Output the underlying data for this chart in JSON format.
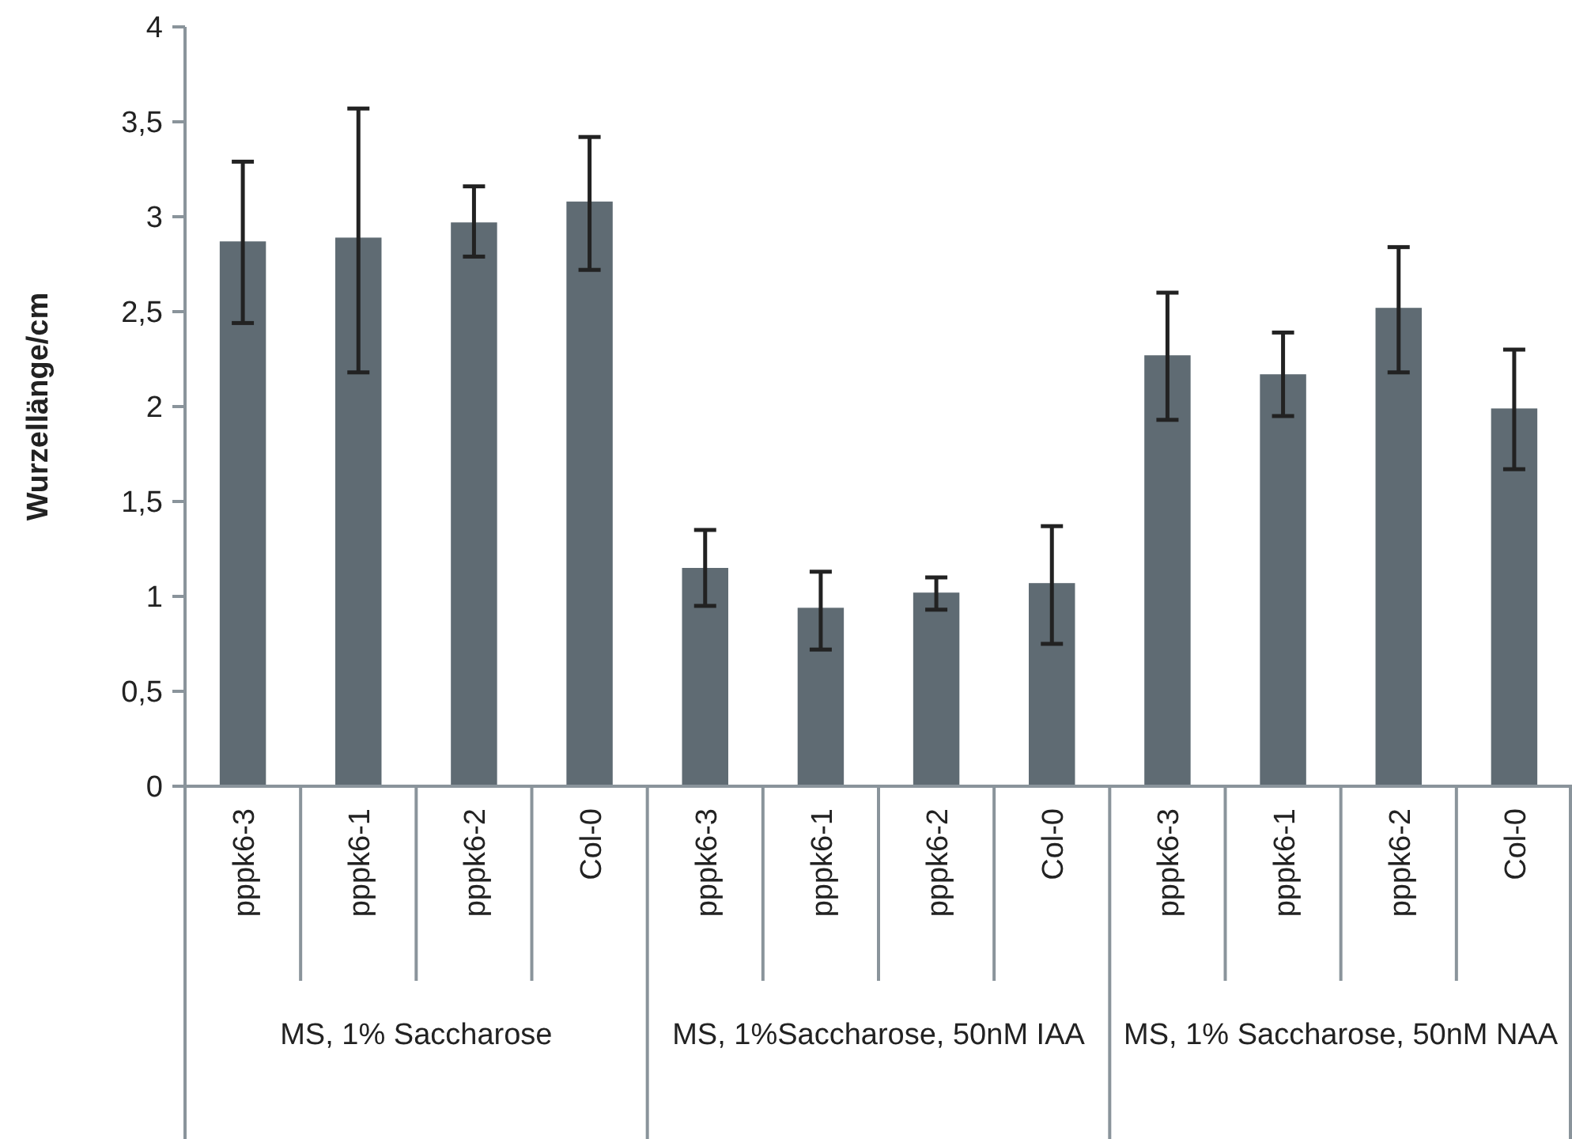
{
  "chart_data": {
    "type": "bar",
    "ylabel": "Wurzellänge/cm",
    "categories": [
      "pppk6-3",
      "pppk6-1",
      "pppk6-2",
      "Col-0",
      "pppk6-3",
      "pppk6-1",
      "pppk6-2",
      "Col-0",
      "pppk6-3",
      "pppk6-1",
      "pppk6-2",
      "Col-0"
    ],
    "values": [
      2.87,
      2.89,
      2.97,
      3.08,
      1.15,
      0.94,
      1.02,
      1.07,
      2.27,
      2.17,
      2.52,
      1.99
    ],
    "errors": [
      [
        2.44,
        3.29
      ],
      [
        2.18,
        3.57
      ],
      [
        2.79,
        3.16
      ],
      [
        2.72,
        3.42
      ],
      [
        0.95,
        1.35
      ],
      [
        0.72,
        1.13
      ],
      [
        0.93,
        1.1
      ],
      [
        0.75,
        1.37
      ],
      [
        1.93,
        2.6
      ],
      [
        1.95,
        2.39
      ],
      [
        2.18,
        2.84
      ],
      [
        1.67,
        2.3
      ]
    ],
    "color": "#5f6b73",
    "ylim": [
      0,
      4
    ],
    "yticks": [
      0,
      {
        "value": 0.5,
        "label": "0,5"
      },
      1,
      {
        "value": 1.5,
        "label": "1,5"
      },
      2,
      {
        "value": 2.5,
        "label": "2,5"
      },
      3,
      {
        "value": 3.5,
        "label": "3,5"
      },
      4
    ],
    "grid": false,
    "annotations": [
      "MS, 1% Saccharose",
      "MS, 1%Saccharose, 50nM IAA",
      "MS, 1% Saccharose, 50nM NAA"
    ]
  }
}
